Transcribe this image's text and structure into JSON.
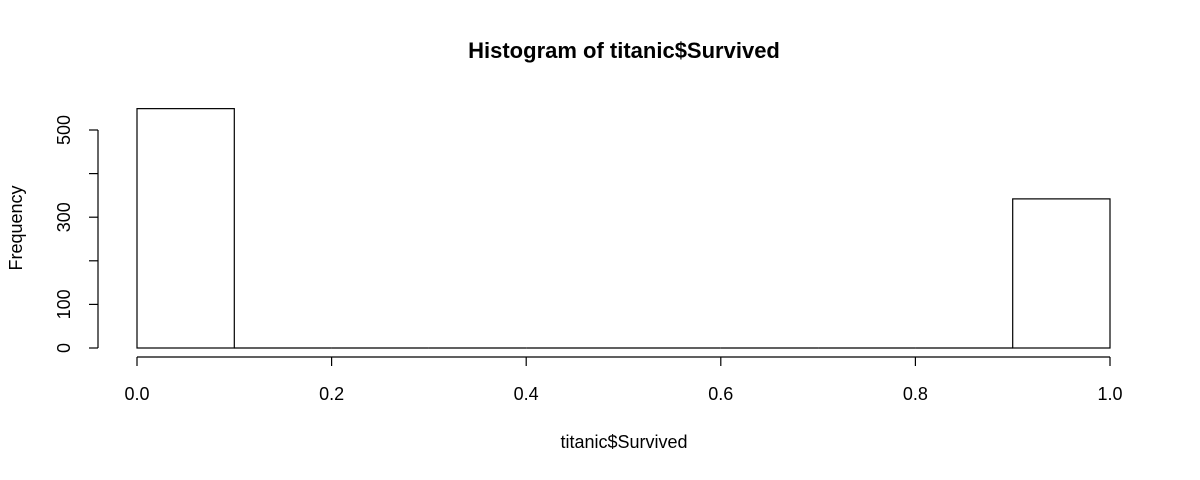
{
  "chart_data": {
    "type": "bar",
    "title": "Histogram of titanic$Survived",
    "xlabel": "titanic$Survived",
    "ylabel": "Frequency",
    "bins": [
      {
        "start": 0.0,
        "end": 0.1,
        "count": 549
      },
      {
        "start": 0.1,
        "end": 0.2,
        "count": 0
      },
      {
        "start": 0.2,
        "end": 0.3,
        "count": 0
      },
      {
        "start": 0.3,
        "end": 0.4,
        "count": 0
      },
      {
        "start": 0.4,
        "end": 0.5,
        "count": 0
      },
      {
        "start": 0.5,
        "end": 0.6,
        "count": 0
      },
      {
        "start": 0.6,
        "end": 0.7,
        "count": 0
      },
      {
        "start": 0.7,
        "end": 0.8,
        "count": 0
      },
      {
        "start": 0.8,
        "end": 0.9,
        "count": 0
      },
      {
        "start": 0.9,
        "end": 1.0,
        "count": 342
      }
    ],
    "xlim": [
      0,
      1
    ],
    "ylim": [
      0,
      549
    ],
    "x_ticks": [
      0.0,
      0.2,
      0.4,
      0.6,
      0.8,
      1.0
    ],
    "x_tick_labels": [
      "0.0",
      "0.2",
      "0.4",
      "0.6",
      "0.8",
      "1.0"
    ],
    "y_ticks": [
      0,
      100,
      200,
      300,
      400,
      500
    ],
    "y_tick_labels": [
      "0",
      "100",
      "",
      "300",
      "",
      "500"
    ],
    "grid": false,
    "legend": "none",
    "colors": {
      "bar_fill": "#ffffff",
      "bar_stroke": "#000000"
    }
  }
}
